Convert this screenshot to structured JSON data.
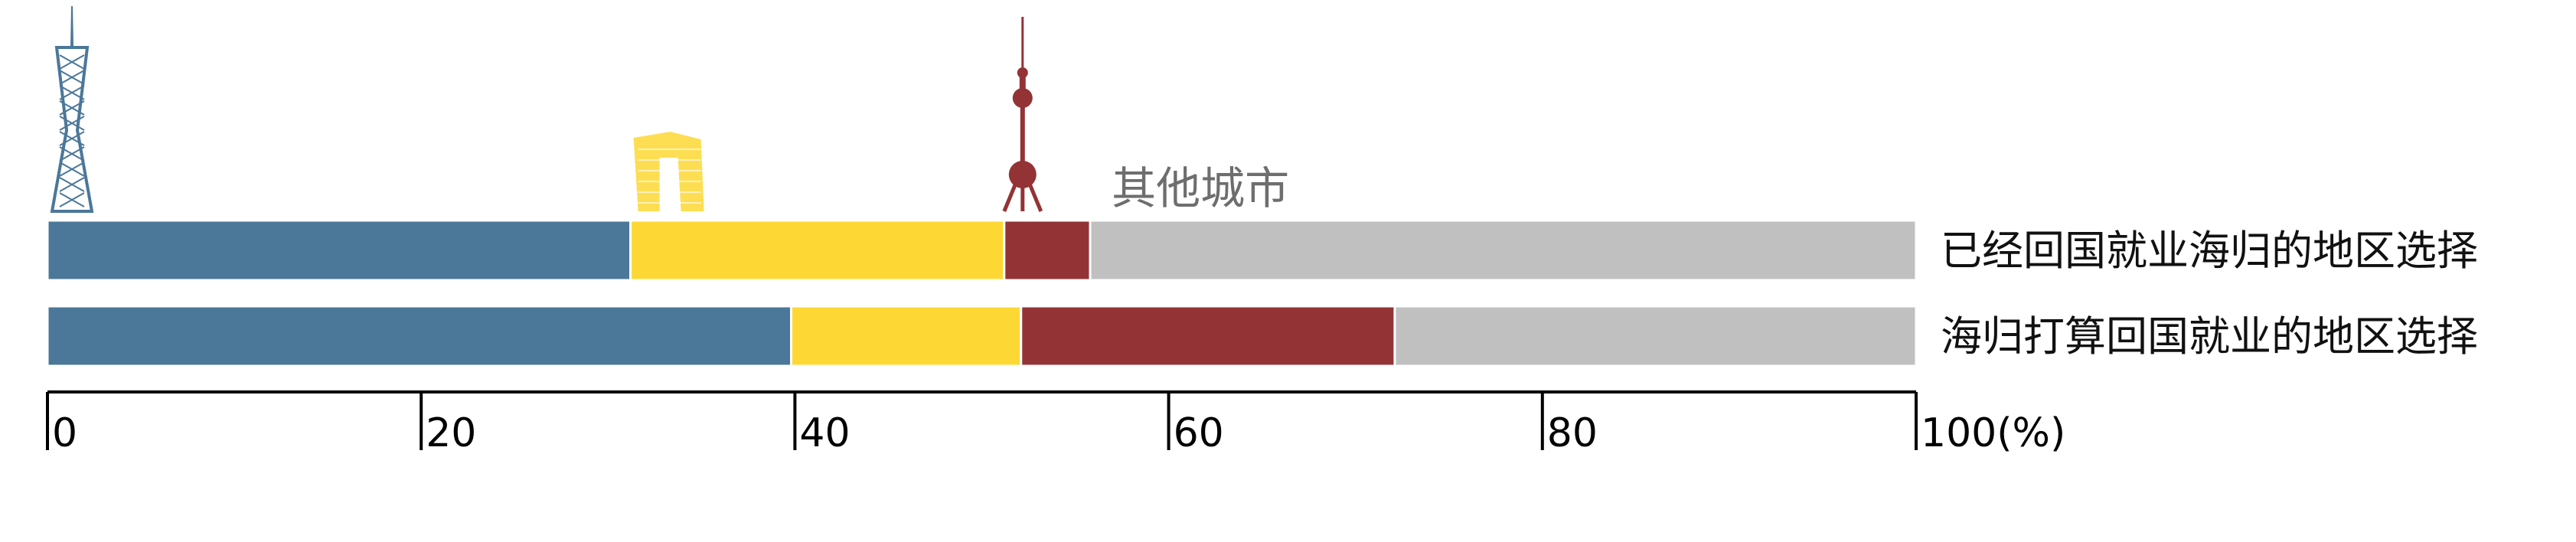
{
  "chart_data": {
    "type": "bar",
    "orientation": "horizontal",
    "stacked": true,
    "categories": [
      "已经回国就业海归的地区选择",
      "海归打算回国就业的地区选择"
    ],
    "series": [
      {
        "name": "",
        "icon": "canton-tower-icon",
        "color": "#4b7799",
        "values": [
          31.2,
          39.8
        ]
      },
      {
        "name": "",
        "icon": "cctv-headquarters-icon",
        "color": "#fdd835",
        "values": [
          20.0,
          12.3
        ]
      },
      {
        "name": "",
        "icon": "oriental-pearl-tower-icon",
        "color": "#933336",
        "values": [
          4.6,
          20.0
        ]
      },
      {
        "name": "其他城市",
        "color": "#c0c0c0",
        "values": [
          44.2,
          27.9
        ]
      }
    ],
    "xlim": [
      0,
      100
    ],
    "xticks": [
      0,
      20,
      40,
      60,
      80,
      100
    ],
    "xtick_labels": [
      "0",
      "20",
      "40",
      "60",
      "80",
      "100(%)"
    ],
    "grid": false,
    "legend": "icons above first bar"
  }
}
